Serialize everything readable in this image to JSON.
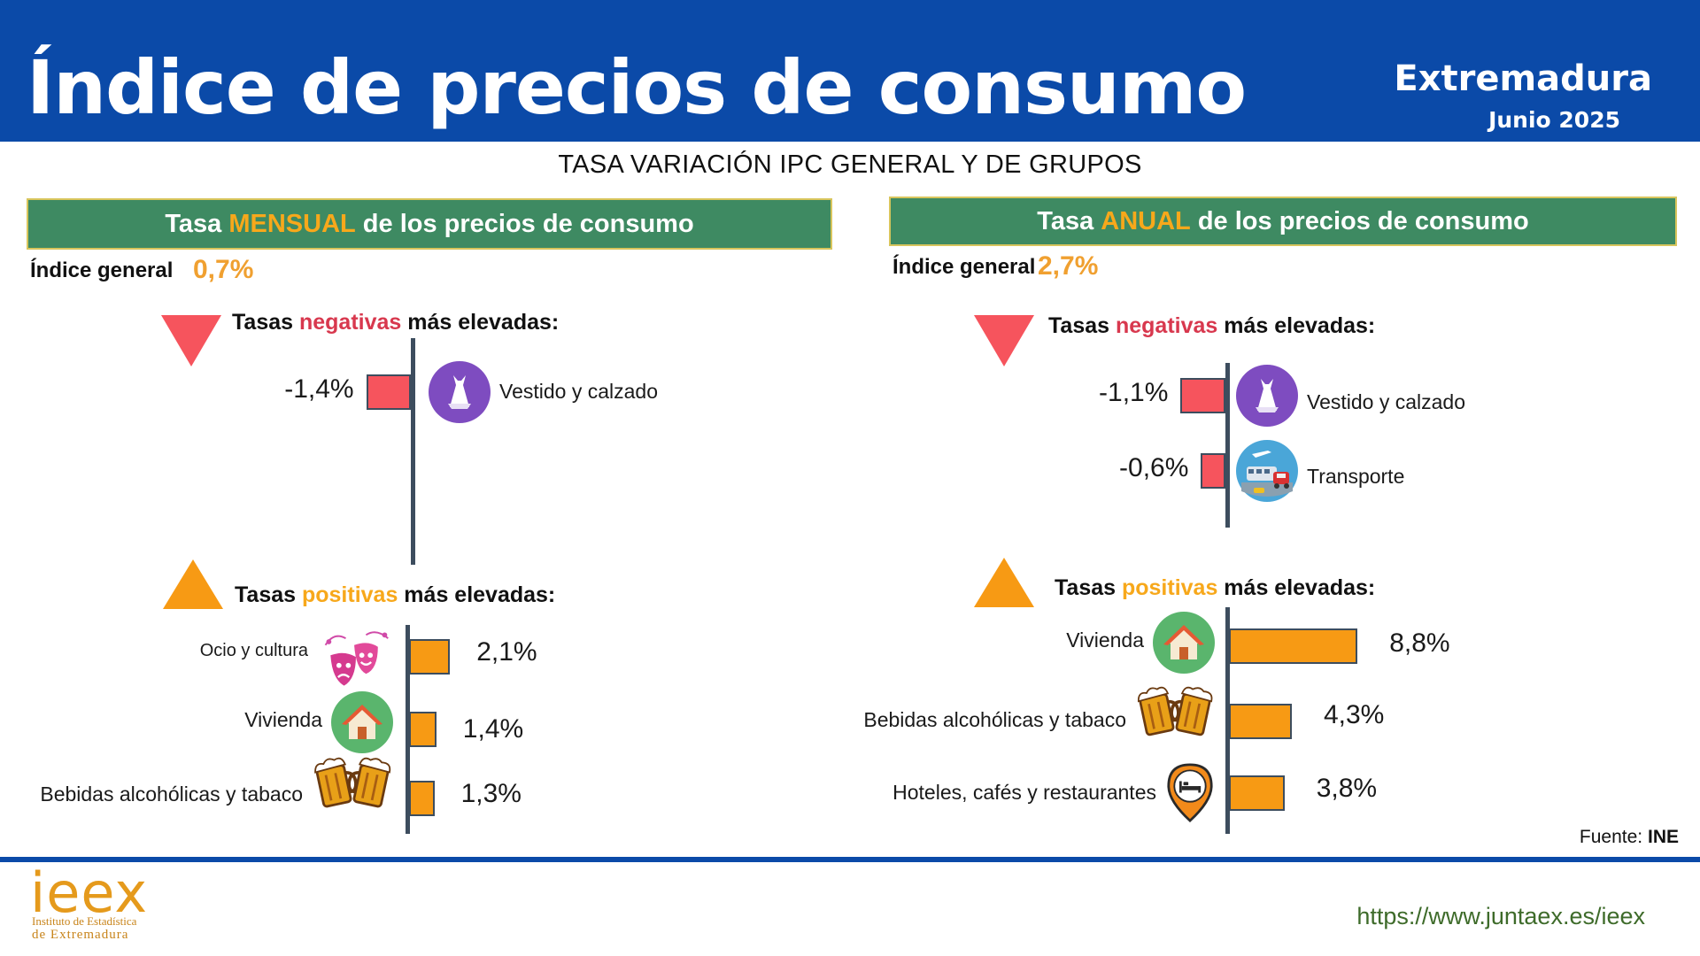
{
  "header": {
    "title": "Índice de precios de consumo",
    "region": "Extremadura",
    "date": "Junio 2025"
  },
  "subtitle": "TASA VARIACIÓN IPC GENERAL Y DE GRUPOS",
  "monthly": {
    "header_pre": "Tasa ",
    "header_hl": "MENSUAL",
    "header_post": " de los precios de consumo",
    "general_label": "Índice general",
    "general_value": "0,7%",
    "neg_title_pre": "Tasas ",
    "neg_title_hl": "negativas",
    "neg_title_post": " más elevadas:",
    "pos_title_pre": "Tasas ",
    "pos_title_hl": "positivas",
    "pos_title_post": " más elevadas:"
  },
  "annual": {
    "header_pre": "Tasa ",
    "header_hl": "ANUAL",
    "header_post": " de los precios de consumo",
    "general_label": "Índice general",
    "general_value": "2,7%",
    "neg_title_pre": "Tasas ",
    "neg_title_hl": "negativas",
    "neg_title_post": " más elevadas:",
    "pos_title_pre": "Tasas ",
    "pos_title_hl": "positivas",
    "pos_title_post": " más elevadas:"
  },
  "chart_data": [
    {
      "type": "bar",
      "title": "Tasa MENSUAL de los precios de consumo",
      "general_index": 0.7,
      "negative": {
        "categories": [
          "Vestido y calzado"
        ],
        "values": [
          -1.4
        ],
        "labels": [
          "-1,4%"
        ],
        "icons": [
          "dress-icon"
        ]
      },
      "positive": {
        "categories": [
          "Ocio y cultura",
          "Vivienda",
          "Bebidas alcohólicas y tabaco"
        ],
        "values": [
          2.1,
          1.4,
          1.3
        ],
        "labels": [
          "2,1%",
          "1,4%",
          "1,3%"
        ],
        "icons": [
          "theatre-masks-icon",
          "house-icon",
          "beer-mugs-icon"
        ]
      }
    },
    {
      "type": "bar",
      "title": "Tasa ANUAL de los precios de consumo",
      "general_index": 2.7,
      "negative": {
        "categories": [
          "Vestido y calzado",
          "Transporte"
        ],
        "values": [
          -1.1,
          -0.6
        ],
        "labels": [
          "-1,1%",
          "-0,6%"
        ],
        "icons": [
          "dress-icon",
          "transport-icon"
        ]
      },
      "positive": {
        "categories": [
          "Vivienda",
          "Bebidas alcohólicas y tabaco",
          "Hoteles, cafés y restaurantes"
        ],
        "values": [
          8.8,
          4.3,
          3.8
        ],
        "labels": [
          "8,8%",
          "4,3%",
          "3,8%"
        ],
        "icons": [
          "house-icon",
          "beer-mugs-icon",
          "hotel-pin-icon"
        ]
      }
    }
  ],
  "colors": {
    "header_bg": "#0b4aa8",
    "panel_green": "#3e8a62",
    "highlight_orange": "#f7a81b",
    "negative_red": "#f6545d",
    "positive_orange": "#f79a14",
    "general_value": "#f0a030"
  },
  "source": {
    "label": "Fuente: ",
    "value": "INE"
  },
  "footer": {
    "logo_word": "ieex",
    "logo_line1": "Instituto de Estadística",
    "logo_line2": "de Extremadura",
    "url": "https://www.juntaex.es/ieex"
  }
}
